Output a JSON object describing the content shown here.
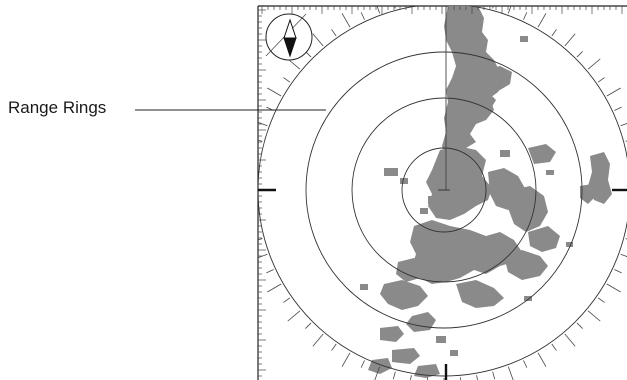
{
  "callout": {
    "label": "Range Rings"
  },
  "colors": {
    "echo": "#8a8a8a",
    "line": "#222222",
    "ring": "#333333",
    "background": "#ffffff"
  },
  "icons": {
    "compass": "north-arrow-compass-icon"
  }
}
